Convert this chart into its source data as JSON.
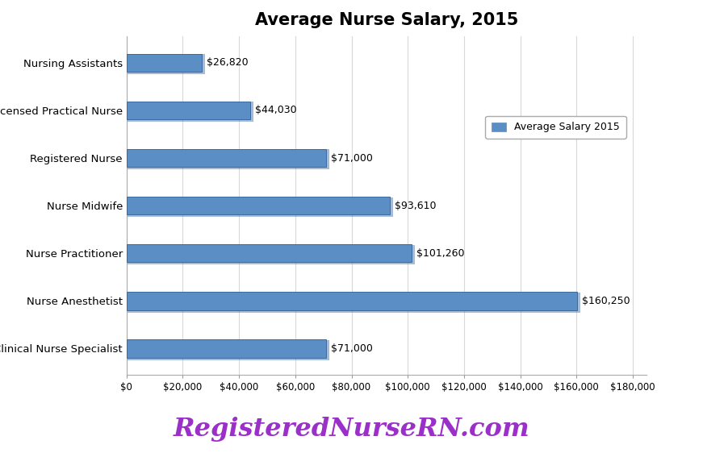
{
  "title": "Average Nurse Salary, 2015",
  "categories": [
    "Clinical Nurse Specialist",
    "Nurse Anesthetist",
    "Nurse Practitioner",
    "Nurse Midwife",
    "Registered Nurse",
    "Licensed Practical Nurse",
    "Nursing Assistants"
  ],
  "values": [
    71000,
    160250,
    101260,
    93610,
    71000,
    44030,
    26820
  ],
  "labels": [
    "$71,000",
    "$160,250",
    "$101,260",
    "$93,610",
    "$71,000",
    "$44,030",
    "$26,820"
  ],
  "bar_color": "#5B8EC5",
  "bar_edge_color": "#3A6A9E",
  "legend_label": "Average Salary 2015",
  "xtick_labels": [
    "$0",
    "$20,000",
    "$40,000",
    "$60,000",
    "$80,000",
    "$100,000",
    "$120,000",
    "$140,000",
    "$160,000",
    "$180,000"
  ],
  "xtick_values": [
    0,
    20000,
    40000,
    60000,
    80000,
    100000,
    120000,
    140000,
    160000,
    180000
  ],
  "xlim": [
    0,
    185000
  ],
  "watermark": "RegisteredNurseRN.com",
  "watermark_color": "#9B30C8",
  "background_color": "#FFFFFF",
  "grid_color": "#D8D8D8",
  "title_fontsize": 15,
  "label_fontsize": 9.5,
  "tick_fontsize": 8.5,
  "value_fontsize": 9,
  "bar_height": 0.38,
  "legend_fontsize": 9
}
